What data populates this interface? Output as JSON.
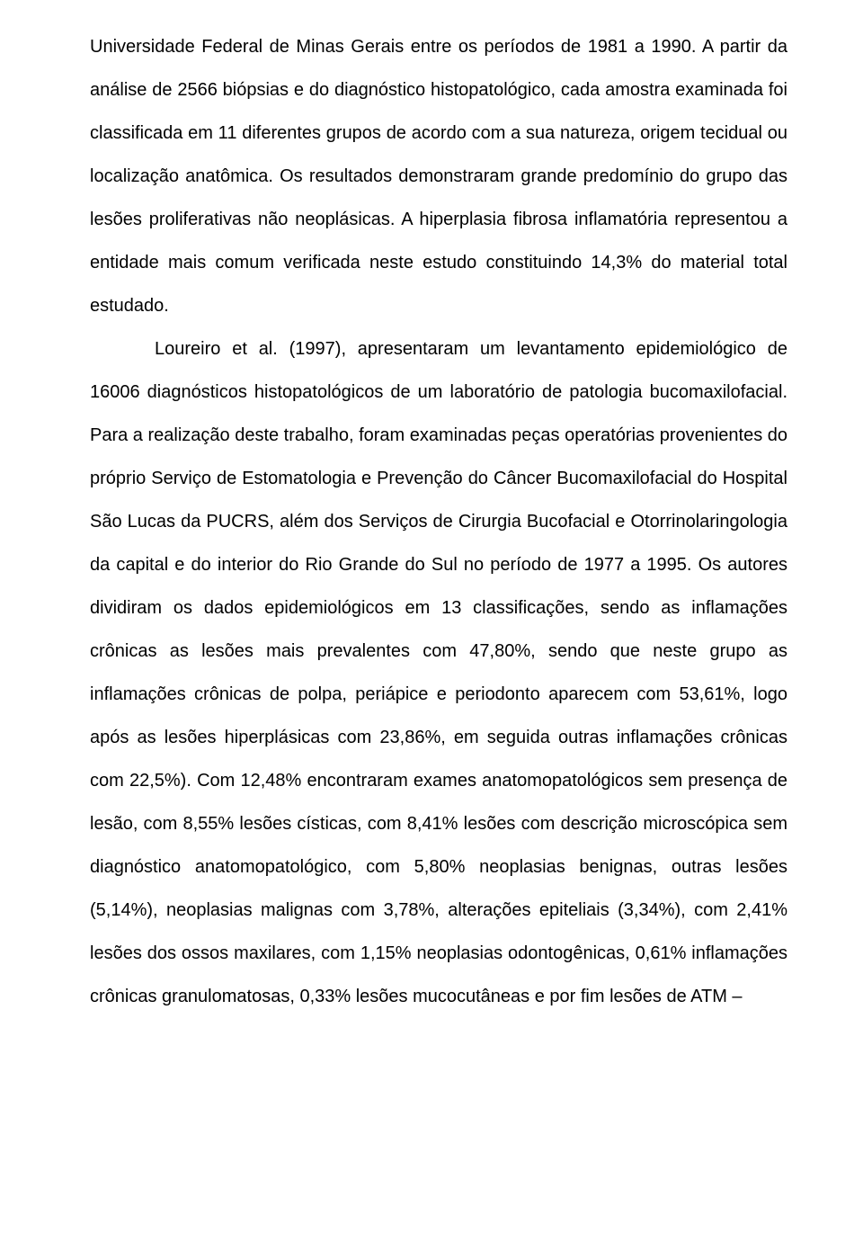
{
  "paragraphs": {
    "p1": "Universidade Federal de Minas Gerais entre os períodos de 1981 a 1990. A partir da análise de 2566 biópsias e do diagnóstico histopatológico, cada amostra examinada foi classificada em 11 diferentes grupos de acordo com a sua natureza, origem tecidual ou localização anatômica. Os resultados demonstraram grande predomínio do grupo das lesões proliferativas não neoplásicas. A hiperplasia fibrosa inflamatória representou a entidade mais comum verificada neste estudo constituindo 14,3% do material total estudado.",
    "p2": "Loureiro et al. (1997), apresentaram um levantamento epidemiológico de 16006 diagnósticos histopatológicos de um laboratório de patologia bucomaxilofacial. Para a realização deste trabalho, foram examinadas peças operatórias provenientes do próprio Serviço de Estomatologia e Prevenção do Câncer Bucomaxilofacial do Hospital São Lucas da PUCRS, além dos Serviços de Cirurgia Bucofacial e Otorrinolaringologia da capital e do interior do Rio Grande do Sul no período de 1977 a 1995. Os autores dividiram os dados epidemiológicos em 13 classificações, sendo as inflamações crônicas as lesões mais prevalentes com 47,80%, sendo que neste grupo as inflamações crônicas de polpa, periápice e periodonto aparecem com 53,61%, logo após as lesões hiperplásicas com 23,86%, em seguida outras inflamações crônicas com 22,5%). Com 12,48% encontraram exames anatomopatológicos sem presença de lesão, com 8,55% lesões císticas, com 8,41% lesões com descrição microscópica sem diagnóstico anatomopatológico, com 5,80% neoplasias benignas, outras lesões (5,14%), neoplasias malignas com 3,78%, alterações epiteliais (3,34%), com 2,41% lesões dos ossos maxilares, com 1,15% neoplasias odontogênicas, 0,61% inflamações crônicas granulomatosas, 0,33% lesões mucocutâneas e por fim lesões de ATM –"
  }
}
